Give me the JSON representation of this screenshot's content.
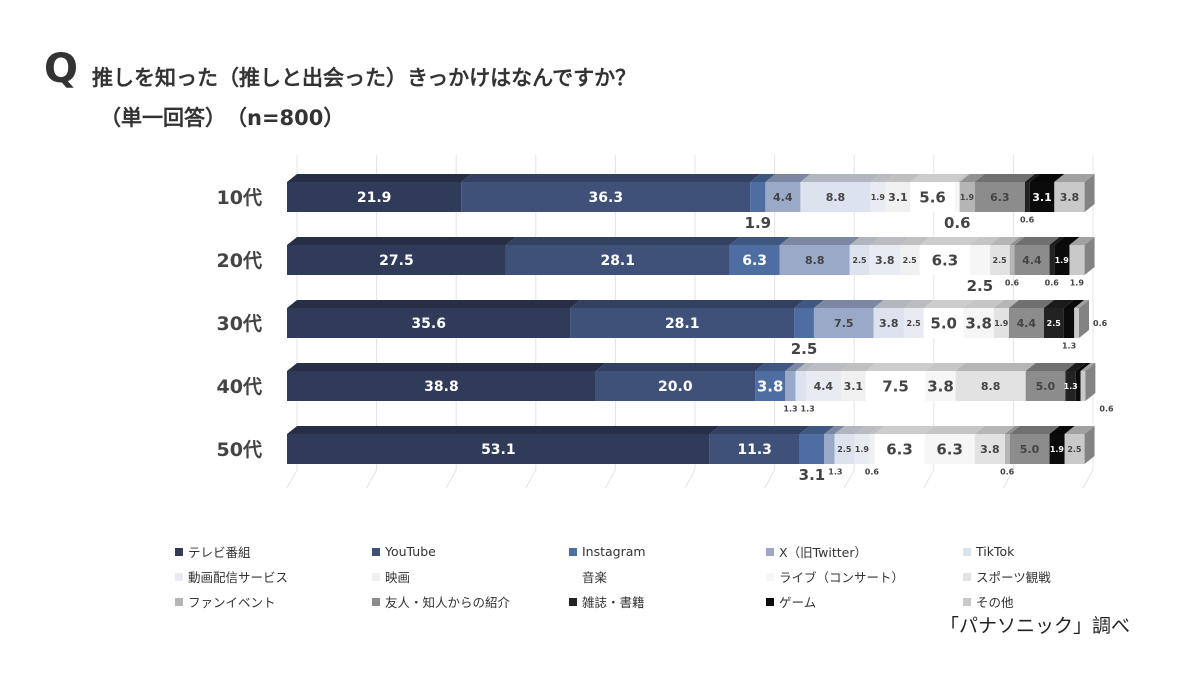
{
  "header": {
    "q_mark": "Q",
    "title": "推しを知った（推しと出会った）きっかけはなんですか？",
    "subtitle": "（単一回答）　（n=800）"
  },
  "source": "「パナソニック」調べ",
  "chart_data": {
    "type": "bar",
    "orientation": "horizontal-stacked-100",
    "categories": [
      "10代",
      "20代",
      "30代",
      "40代",
      "50代"
    ],
    "xlim": [
      0,
      100
    ],
    "grid": true,
    "legend_position": "bottom",
    "series": [
      {
        "name": "テレビ番組",
        "color": "#2f3b58",
        "values": [
          21.9,
          27.5,
          35.6,
          38.8,
          53.1
        ]
      },
      {
        "name": "YouTube",
        "color": "#3f5079",
        "values": [
          36.3,
          28.1,
          28.1,
          20.0,
          11.3
        ]
      },
      {
        "name": "Instagram",
        "color": "#4e6ea2",
        "values": [
          1.9,
          6.3,
          2.5,
          3.8,
          3.1
        ]
      },
      {
        "name": "X（旧Twitter）",
        "color": "#9ba9c9",
        "values": [
          4.4,
          8.8,
          7.5,
          1.3,
          1.3
        ]
      },
      {
        "name": "TikTok",
        "color": "#dce2ee",
        "values": [
          8.8,
          2.5,
          3.8,
          1.3,
          2.5
        ]
      },
      {
        "name": "動画配信サービス",
        "color": "#e8ebf1",
        "values": [
          1.9,
          3.8,
          2.5,
          4.4,
          1.9
        ]
      },
      {
        "name": "映画",
        "color": "#f0f0f0",
        "values": [
          3.1,
          2.5,
          0,
          3.1,
          0.6
        ]
      },
      {
        "name": "音楽",
        "color": "#ffffff",
        "values": [
          5.6,
          6.3,
          5.0,
          7.5,
          6.3
        ]
      },
      {
        "name": "ライブ（コンサート）",
        "color": "#f6f6f6",
        "values": [
          0.6,
          2.5,
          3.8,
          3.8,
          6.3
        ]
      },
      {
        "name": "スポーツ観戦",
        "color": "#e2e2e2",
        "values": [
          0,
          2.5,
          1.9,
          8.8,
          3.8
        ]
      },
      {
        "name": "ファンイベント",
        "color": "#b5b5b5",
        "values": [
          1.9,
          0.6,
          0,
          0,
          0.6
        ]
      },
      {
        "name": "友人・知人からの紹介",
        "color": "#8c8c8c",
        "values": [
          6.3,
          4.4,
          4.4,
          5.0,
          5.0
        ]
      },
      {
        "name": "雑誌・書籍",
        "color": "#222222",
        "values": [
          0.6,
          0.6,
          2.5,
          1.3,
          0
        ]
      },
      {
        "name": "ゲーム",
        "color": "#0b0b0b",
        "values": [
          3.1,
          1.9,
          1.3,
          0.6,
          1.9
        ]
      },
      {
        "name": "その他",
        "color": "#c9c9c9",
        "values": [
          3.8,
          1.9,
          0.6,
          0.6,
          2.5
        ]
      }
    ]
  }
}
